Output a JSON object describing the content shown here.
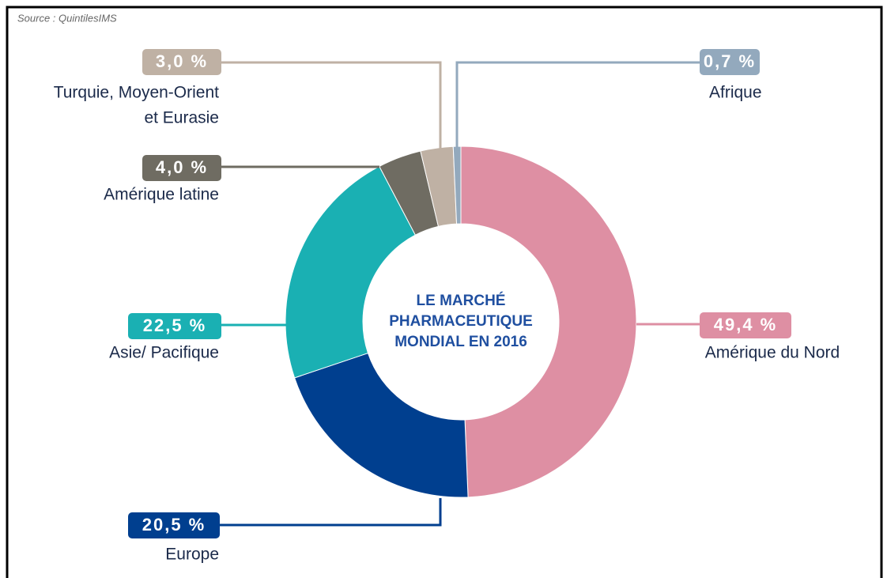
{
  "source": "Source : QuintilesIMS",
  "chart_data": {
    "type": "donut",
    "title": [
      "LE MARCHÉ",
      "PHARMACEUTIQUE",
      "MONDIAL EN 2016"
    ],
    "categories": [
      [
        "Amérique du Nord"
      ],
      [
        "Europe"
      ],
      [
        "Asie/ Pacifique"
      ],
      [
        "Amérique latine"
      ],
      [
        "Turquie, Moyen-Orient",
        "et Eurasie"
      ],
      [
        "Afrique"
      ]
    ],
    "values": [
      49.4,
      20.5,
      22.5,
      4.0,
      3.0,
      0.7
    ],
    "value_labels": [
      "49,4 %",
      "20,5 %",
      "22,5 %",
      "4,0 %",
      "3,0 %",
      "0,7 %"
    ],
    "colors": [
      "#de8fa3",
      "#003f8f",
      "#1ab0b3",
      "#6f6c62",
      "#bfb1a4",
      "#93a9bd"
    ]
  }
}
